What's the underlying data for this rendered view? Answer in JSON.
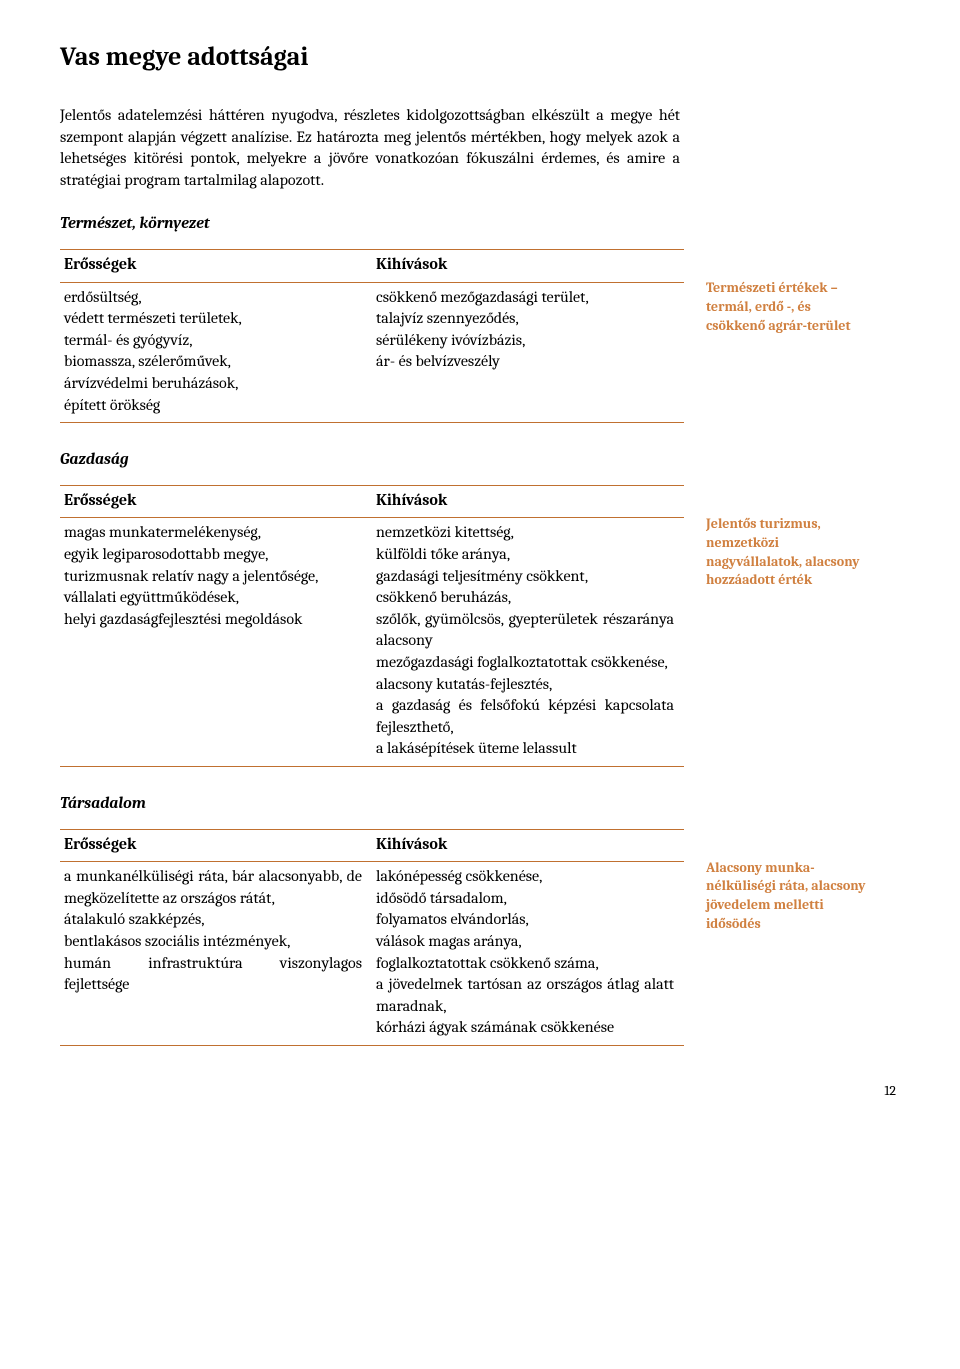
{
  "page": {
    "title": "Vas megye adottságai",
    "intro": "Jelentős adatelemzési háttéren nyugodva, részletes kidolgozottságban elkészült a megye hét szempont alapján végzett analízise. Ez határozta meg jelentős mértékben, hogy melyek azok a lehetséges kitörési pontok, melyekre a jövőre vonatkozóan fókuszálni érdemes, és amire a stratégiai program tartalmilag alapozott.",
    "number": "12"
  },
  "colors": {
    "table_border": "#c07030",
    "sidenote_text": "#d08040",
    "body_text": "#000000",
    "background": "#ffffff"
  },
  "sections": [
    {
      "heading": "Természet, környezet",
      "col_left_header": "Erősségek",
      "col_right_header": "Kihívások",
      "col_left_body": "erdősültség,\nvédett természeti területek,\ntermál- és gyógyvíz,\nbiomassza, szélerőművek,\nárvízvédelmi beruházások,\népített örökség",
      "col_right_body": "csökkenő mezőgazdasági terület,\ntalajvíz szennyeződés,\nsérülékeny ivóvízbázis,\nár- és belvízveszély",
      "sidenote": "Természeti értékek – termál, erdő -, és csökkenő agrár-terület"
    },
    {
      "heading": "Gazdaság",
      "col_left_header": "Erősségek",
      "col_right_header": "Kihívások",
      "col_left_body": "magas munkatermelékenység,\negyik legiparosodottabb megye,\nturizmusnak relatív nagy a jelentősége,\nvállalati együttműködések,\nhelyi gazdaságfejlesztési megoldások",
      "col_right_body": "nemzetközi kitettség,\nkülföldi tőke aránya,\ngazdasági teljesítmény csökkent,\ncsökkenő beruházás,\nszőlők, gyümölcsös, gyepterületek részaránya alacsony\nmezőgazdasági foglalkoztatottak csökkenése,\nalacsony kutatás-fejlesztés,\na gazdaság és felsőfokú képzési kapcsolata fejleszthető,\na lakásépítések üteme lelassult",
      "sidenote": "Jelentős turizmus, nemzetközi nagyvállalatok, alacsony hozzáadott érték"
    },
    {
      "heading": "Társadalom",
      "col_left_header": "Erősségek",
      "col_right_header": "Kihívások",
      "col_left_body": "a munkanélküliségi ráta, bár alacsonyabb, de megközelítette az országos rátát,\nátalakuló szakképzés,\nbentlakásos szociális intézmények,\nhumán infrastruktúra viszonylagos fejlettsége",
      "col_right_body": "lakónépesség csökkenése,\nidősödő társadalom,\nfolyamatos elvándorlás,\nválások magas aránya,\nfoglalkoztatottak csökkenő száma,\na jövedelmek tartósan az országos átlag alatt maradnak,\nkórházi ágyak számának csökkenése",
      "sidenote": "Alacsony munka-nélküliségi ráta, alacsony jövedelem melletti idősödés"
    }
  ]
}
